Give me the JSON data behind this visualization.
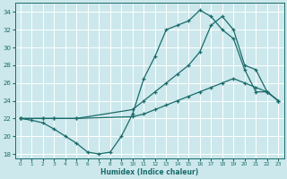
{
  "xlabel": "Humidex (Indice chaleur)",
  "bg_color": "#cce8ec",
  "line_color": "#1a6b6b",
  "grid_color": "#b0d4d8",
  "xlim": [
    -0.5,
    23.5
  ],
  "ylim": [
    17.5,
    35
  ],
  "yticks": [
    18,
    20,
    22,
    24,
    26,
    28,
    30,
    32,
    34
  ],
  "xticks": [
    0,
    1,
    2,
    3,
    4,
    5,
    6,
    7,
    8,
    9,
    10,
    11,
    12,
    13,
    14,
    15,
    16,
    17,
    18,
    19,
    20,
    21,
    22,
    23
  ],
  "curve1_x": [
    0,
    1,
    2,
    3,
    4,
    5,
    6,
    7,
    8,
    9,
    10,
    11,
    12,
    13,
    14,
    15,
    16,
    17,
    18,
    19,
    20,
    21,
    22,
    23
  ],
  "curve1_y": [
    22,
    21.8,
    21.5,
    20.8,
    20.0,
    19.2,
    18.2,
    18.0,
    18.2,
    20.0,
    22.5,
    26.5,
    29.0,
    32.0,
    32.5,
    33.0,
    34.2,
    33.5,
    32.0,
    31.0,
    27.5,
    25.0,
    25.0,
    24.0
  ],
  "curve2_x": [
    0,
    2,
    3,
    5,
    10,
    11,
    12,
    13,
    14,
    15,
    16,
    17,
    18,
    19,
    20,
    21,
    22,
    23
  ],
  "curve2_y": [
    22,
    22,
    22,
    22,
    23,
    24,
    25,
    26,
    27,
    28,
    29.5,
    32.5,
    33.5,
    32.0,
    28.0,
    27.5,
    25.0,
    24.0
  ],
  "curve3_x": [
    0,
    2,
    3,
    5,
    10,
    11,
    12,
    13,
    14,
    15,
    16,
    17,
    18,
    19,
    20,
    21,
    22,
    23
  ],
  "curve3_y": [
    22,
    22,
    22,
    22,
    22.2,
    22.5,
    23.0,
    23.5,
    24.0,
    24.5,
    25.0,
    25.5,
    26.0,
    26.5,
    26.0,
    25.5,
    25.0,
    24.0
  ]
}
